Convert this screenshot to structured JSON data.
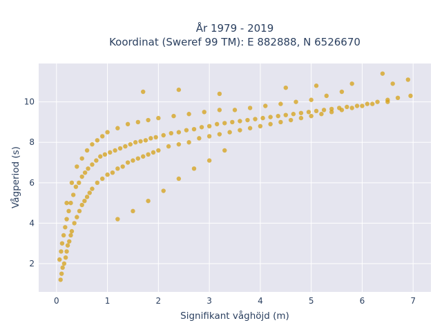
{
  "chart_data": {
    "type": "scatter",
    "title_lines": [
      "År 1979 - 2019",
      "Koordinat (Sweref 99 TM): E 882888, N 6526670"
    ],
    "xlabel": "Signifikant våghöjd (m)",
    "ylabel": "Vågperiod (s)",
    "xlim": [
      -0.35,
      7.35
    ],
    "ylim": [
      0.6,
      11.9
    ],
    "xticks": [
      0,
      1,
      2,
      3,
      4,
      5,
      6,
      7
    ],
    "yticks": [
      2,
      4,
      6,
      8,
      10
    ],
    "grid": true,
    "marker_color": "#D4A017",
    "marker_opacity": 0.75,
    "plot_background": "#E5E5EF",
    "x": [
      0.08,
      0.1,
      0.12,
      0.15,
      0.18,
      0.2,
      0.22,
      0.25,
      0.28,
      0.3,
      0.35,
      0.4,
      0.45,
      0.5,
      0.55,
      0.6,
      0.65,
      0.7,
      0.8,
      0.9,
      1.0,
      1.1,
      1.2,
      1.3,
      1.4,
      1.5,
      1.6,
      1.7,
      1.8,
      1.9,
      2.0,
      2.2,
      2.4,
      2.6,
      2.8,
      3.0,
      3.2,
      3.4,
      3.6,
      3.8,
      4.0,
      4.2,
      4.4,
      4.6,
      4.8,
      5.0,
      5.2,
      5.4,
      5.6,
      5.8,
      6.0,
      6.2,
      6.5,
      6.9,
      0.2,
      0.3,
      0.4,
      0.5,
      0.6,
      0.7,
      0.8,
      0.9,
      1.0,
      1.2,
      1.4,
      1.6,
      1.8,
      2.0,
      2.3,
      2.6,
      2.9,
      3.2,
      3.5,
      3.8,
      4.1,
      4.4,
      4.7,
      5.0,
      5.3,
      5.6,
      0.06,
      0.09,
      0.11,
      0.14,
      0.17,
      0.2,
      0.24,
      0.28,
      0.33,
      0.38,
      0.44,
      0.5,
      0.56,
      0.62,
      0.7,
      0.78,
      0.86,
      0.95,
      1.05,
      1.15,
      1.25,
      1.35,
      1.45,
      1.55,
      1.65,
      1.75,
      1.85,
      1.95,
      2.1,
      2.25,
      2.4,
      2.55,
      2.7,
      2.85,
      3.0,
      3.15,
      3.3,
      3.45,
      3.6,
      3.75,
      3.9,
      4.05,
      4.2,
      4.35,
      4.5,
      4.65,
      4.8,
      4.95,
      5.1,
      5.25,
      5.4,
      5.55,
      5.7,
      5.9,
      6.1,
      6.3,
      6.5,
      6.7,
      6.95,
      1.2,
      1.5,
      1.8,
      2.1,
      2.4,
      2.7,
      3.0,
      3.3,
      1.7,
      2.4,
      3.2,
      4.5,
      5.1,
      5.8,
      6.4,
      6.6
    ],
    "y": [
      1.2,
      1.5,
      1.8,
      2.0,
      2.3,
      2.6,
      2.9,
      3.1,
      3.4,
      3.6,
      4.0,
      4.3,
      4.6,
      4.9,
      5.1,
      5.3,
      5.5,
      5.7,
      6.0,
      6.2,
      6.4,
      6.5,
      6.7,
      6.8,
      7.0,
      7.1,
      7.2,
      7.3,
      7.4,
      7.5,
      7.6,
      7.8,
      7.9,
      8.0,
      8.2,
      8.3,
      8.4,
      8.5,
      8.6,
      8.7,
      8.8,
      8.9,
      9.0,
      9.1,
      9.2,
      9.3,
      9.4,
      9.5,
      9.6,
      9.7,
      9.8,
      9.9,
      10.0,
      11.1,
      5.0,
      6.0,
      6.8,
      7.2,
      7.6,
      7.9,
      8.1,
      8.3,
      8.5,
      8.7,
      8.9,
      9.0,
      9.1,
      9.2,
      9.3,
      9.4,
      9.5,
      9.6,
      9.6,
      9.7,
      9.8,
      9.9,
      10.0,
      10.1,
      10.3,
      10.5,
      2.2,
      2.6,
      3.0,
      3.4,
      3.8,
      4.2,
      4.6,
      5.0,
      5.4,
      5.8,
      6.0,
      6.3,
      6.5,
      6.7,
      6.9,
      7.1,
      7.3,
      7.4,
      7.5,
      7.6,
      7.7,
      7.8,
      7.9,
      8.0,
      8.05,
      8.1,
      8.2,
      8.25,
      8.35,
      8.45,
      8.5,
      8.6,
      8.65,
      8.75,
      8.8,
      8.9,
      8.95,
      9.0,
      9.05,
      9.1,
      9.15,
      9.2,
      9.25,
      9.3,
      9.35,
      9.4,
      9.45,
      9.5,
      9.55,
      9.6,
      9.65,
      9.7,
      9.75,
      9.8,
      9.9,
      10.0,
      10.1,
      10.2,
      10.3,
      4.2,
      4.6,
      5.1,
      5.6,
      6.2,
      6.7,
      7.1,
      7.6,
      10.5,
      10.6,
      10.4,
      10.7,
      10.8,
      10.9,
      11.4,
      10.9
    ]
  }
}
